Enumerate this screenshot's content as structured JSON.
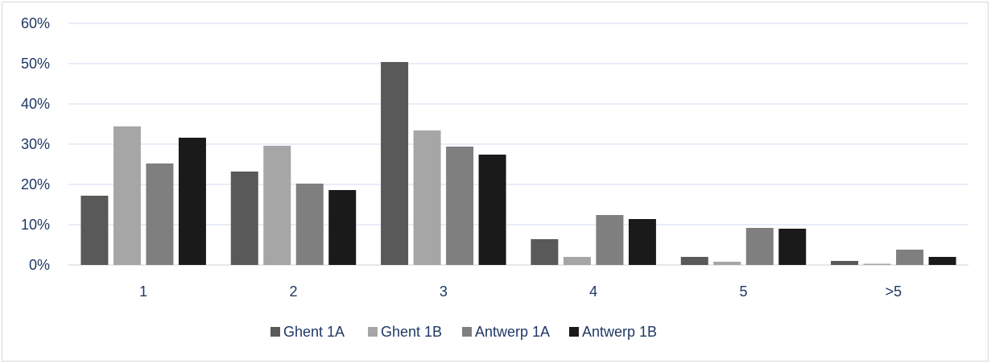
{
  "chart_data": {
    "type": "bar",
    "categories": [
      "1",
      "2",
      "3",
      "4",
      "5",
      ">5"
    ],
    "series": [
      {
        "name": "Ghent 1A",
        "color": "#595959",
        "values": [
          17.2,
          23.2,
          50.4,
          6.4,
          2.0,
          1.0
        ]
      },
      {
        "name": "Ghent 1B",
        "color": "#a6a6a6",
        "values": [
          34.4,
          29.6,
          33.4,
          2.0,
          0.8,
          0.3
        ]
      },
      {
        "name": "Antwerp 1A",
        "color": "#7f7f7f",
        "values": [
          25.2,
          20.2,
          29.4,
          12.4,
          9.2,
          3.8
        ]
      },
      {
        "name": "Antwerp 1B",
        "color": "#1a1a1a",
        "values": [
          31.6,
          18.6,
          27.4,
          11.4,
          9.0,
          2.0
        ]
      }
    ],
    "yticks": [
      "0%",
      "10%",
      "20%",
      "30%",
      "40%",
      "50%",
      "60%"
    ],
    "ylim": [
      0,
      60
    ],
    "grid": true,
    "legend": "bottom"
  }
}
